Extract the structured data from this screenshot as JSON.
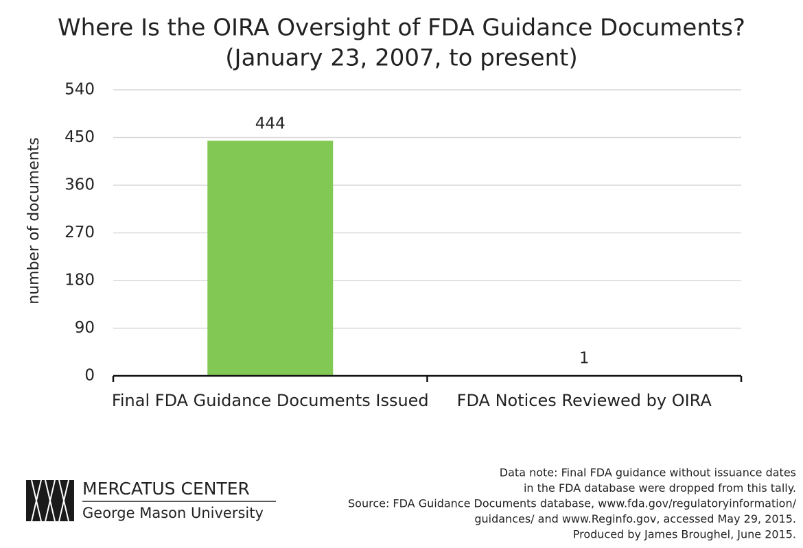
{
  "chart_data": {
    "type": "bar",
    "title": "Where Is the OIRA Oversight of FDA Guidance Documents?",
    "subtitle": "(January 23, 2007, to present)",
    "y_label": "number of documents",
    "categories": [
      "Final FDA Guidance Documents Issued",
      "FDA Notices Reviewed by OIRA"
    ],
    "values": [
      444,
      1
    ],
    "color": "#82c855",
    "ylim": [
      0,
      540
    ],
    "yticks": [
      0,
      90,
      180,
      270,
      360,
      450,
      540
    ],
    "grid": true
  },
  "footer": {
    "logo": [
      "MERCATUS CENTER",
      "George Mason University"
    ],
    "notes": [
      "Data note: Final FDA guidance without issuance dates",
      "in the FDA database were dropped from this tally.",
      "Source: FDA Guidance Documents database, www.fda.gov/regulatoryinformation/",
      "guidances/ and www.Reginfo.gov, accessed May 29, 2015.",
      "Produced by James Broughel, June 2015."
    ]
  }
}
